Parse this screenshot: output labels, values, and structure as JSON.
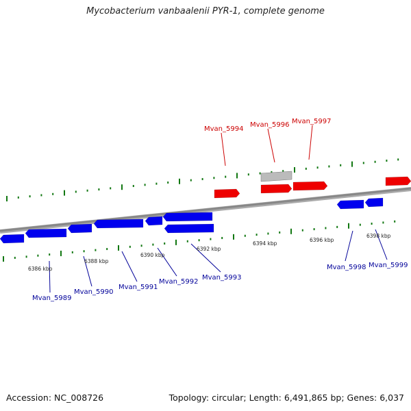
{
  "title": "Mycobacterium vanbaalenii PYR-1, complete genome",
  "footer": {
    "accession": "Accession: NC_008726",
    "summary": "Topology: circular; Length: 6,491,865 bp; Genes: 6,037"
  },
  "colors": {
    "forward_gene": "#ee0000",
    "reverse_gene": "#0000ee",
    "other_feature": "#bbbbbb",
    "backbone": "#888888",
    "ticks": "#117711",
    "forward_label": "#cc0000",
    "reverse_label": "#000099"
  },
  "kbp_labels": [
    "6386 kbp",
    "6388 kbp",
    "6390 kbp",
    "6392 kbp",
    "6394 kbp",
    "6396 kbp",
    "6398 kbp"
  ],
  "genes_forward": [
    {
      "id": "fwd-1",
      "label": "Mvan_5994"
    },
    {
      "id": "fwd-2",
      "label": ""
    },
    {
      "id": "fwd-3",
      "label": "Mvan_5996"
    },
    {
      "id": "fwd-4",
      "label": "Mvan_5997"
    },
    {
      "id": "fwd-5",
      "label": ""
    }
  ],
  "genes_reverse": [
    {
      "id": "rev-1",
      "label": "Mvan_5989"
    },
    {
      "id": "rev-2",
      "label": "Mvan_5990"
    },
    {
      "id": "rev-3",
      "label": "Mvan_5991"
    },
    {
      "id": "rev-4",
      "label": "Mvan_5992"
    },
    {
      "id": "rev-5",
      "label": ""
    },
    {
      "id": "rev-6",
      "label": "Mvan_5993"
    },
    {
      "id": "rev-7",
      "label": ""
    },
    {
      "id": "rev-8",
      "label": "Mvan_5998"
    },
    {
      "id": "rev-9",
      "label": "Mvan_5999"
    }
  ]
}
